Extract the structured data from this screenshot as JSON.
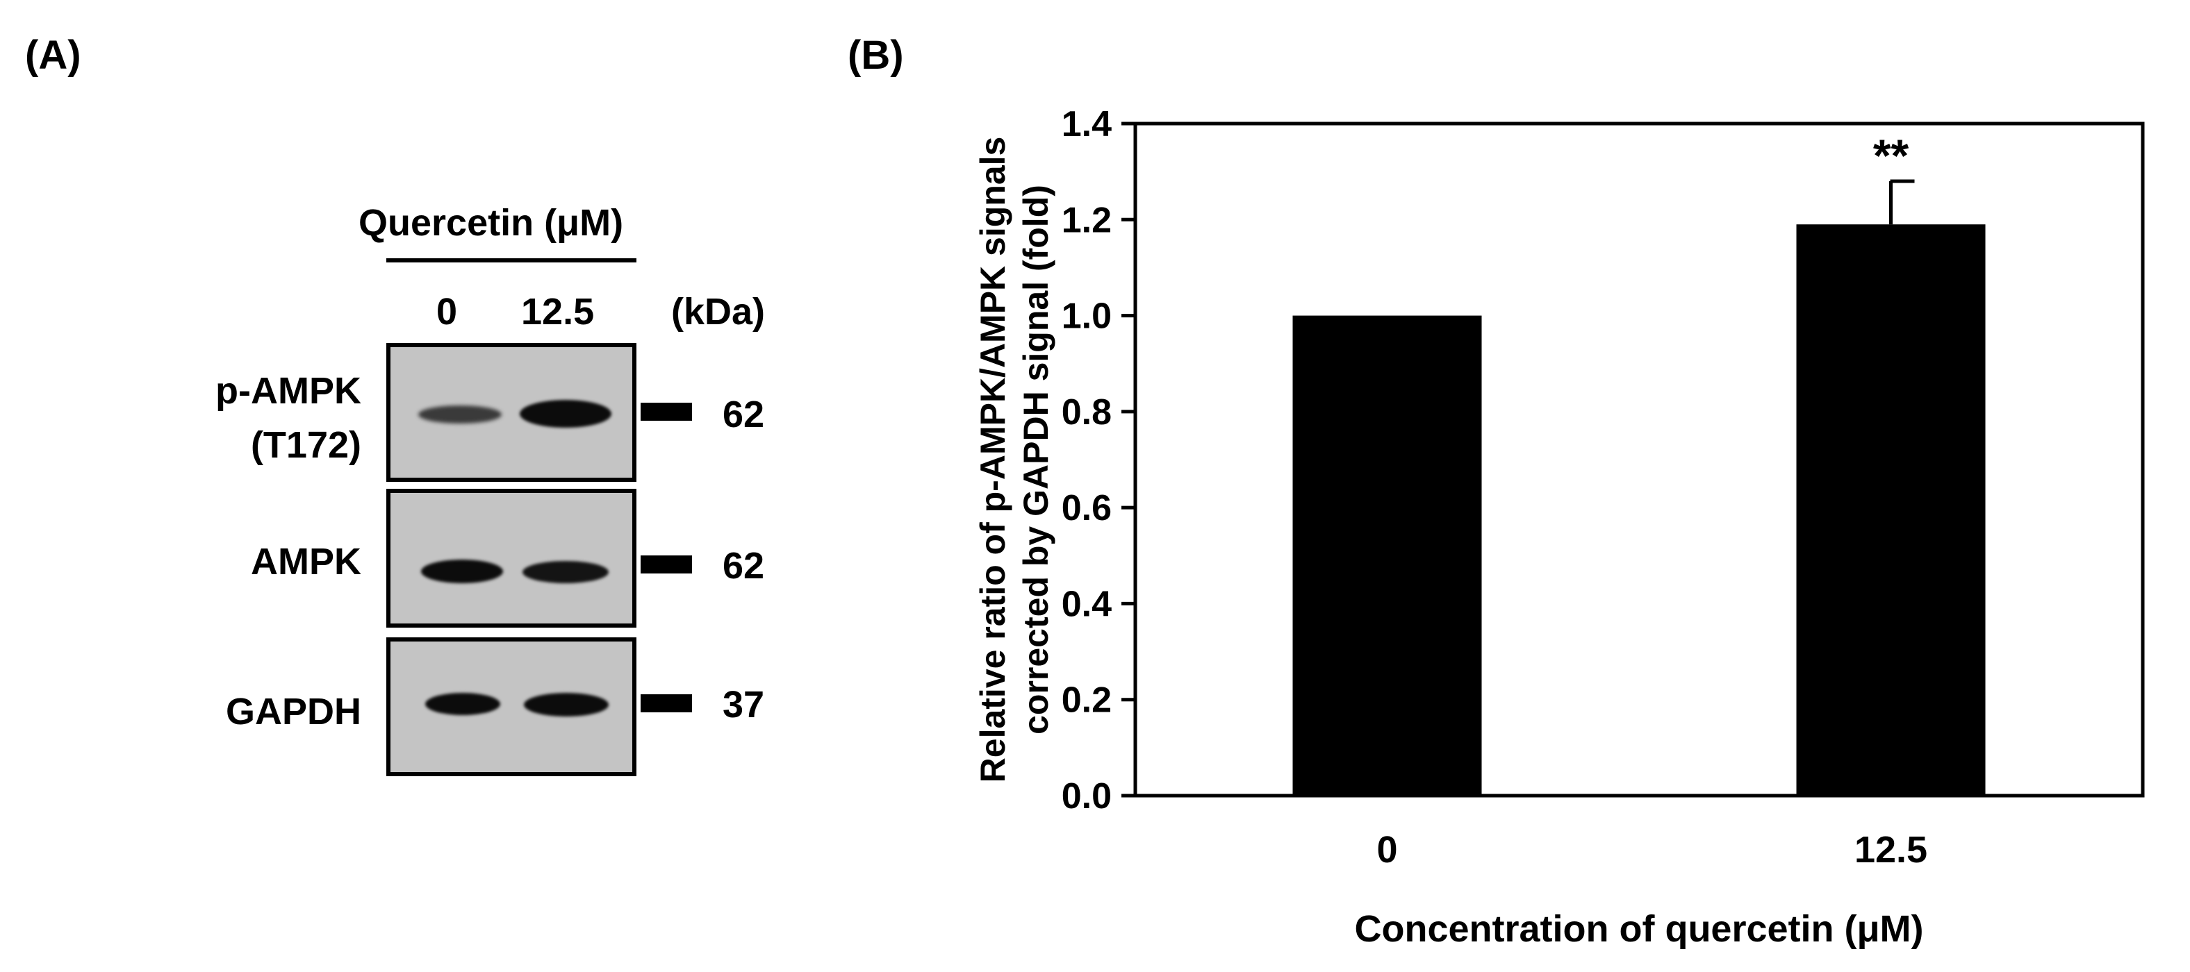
{
  "panel_a": {
    "label": "(A)",
    "treatment_header": "Quercetin (μM)",
    "lane_labels": [
      "0",
      "12.5"
    ],
    "kda_header": "(kDa)",
    "rows": [
      {
        "label_line1": "p-AMPK",
        "label_line2": "(T172)",
        "kda": "62"
      },
      {
        "label_line1": "AMPK",
        "label_line2": "",
        "kda": "62"
      },
      {
        "label_line1": "GAPDH",
        "label_line2": "",
        "kda": "37"
      }
    ]
  },
  "panel_b": {
    "label": "(B)"
  },
  "chart_data": {
    "type": "bar",
    "categories": [
      "0",
      "12.5"
    ],
    "values": [
      1.0,
      1.19
    ],
    "errors": [
      0,
      0.09
    ],
    "significance": [
      "",
      "**"
    ],
    "ylim": [
      0.0,
      1.4
    ],
    "yticks": [
      0.0,
      0.2,
      0.4,
      0.6,
      0.8,
      1.0,
      1.2,
      1.4
    ],
    "ytick_labels": [
      "0.0",
      "0.2",
      "0.4",
      "0.6",
      "0.8",
      "1.0",
      "1.2",
      "1.4"
    ],
    "ylabel_line1": "Relative ratio of p-AMPK/AMPK signals",
    "ylabel_line2": "corrected by GAPDH signal (fold)",
    "xlabel": "Concentration of quercetin (μM)",
    "bar_color": "#000000"
  }
}
